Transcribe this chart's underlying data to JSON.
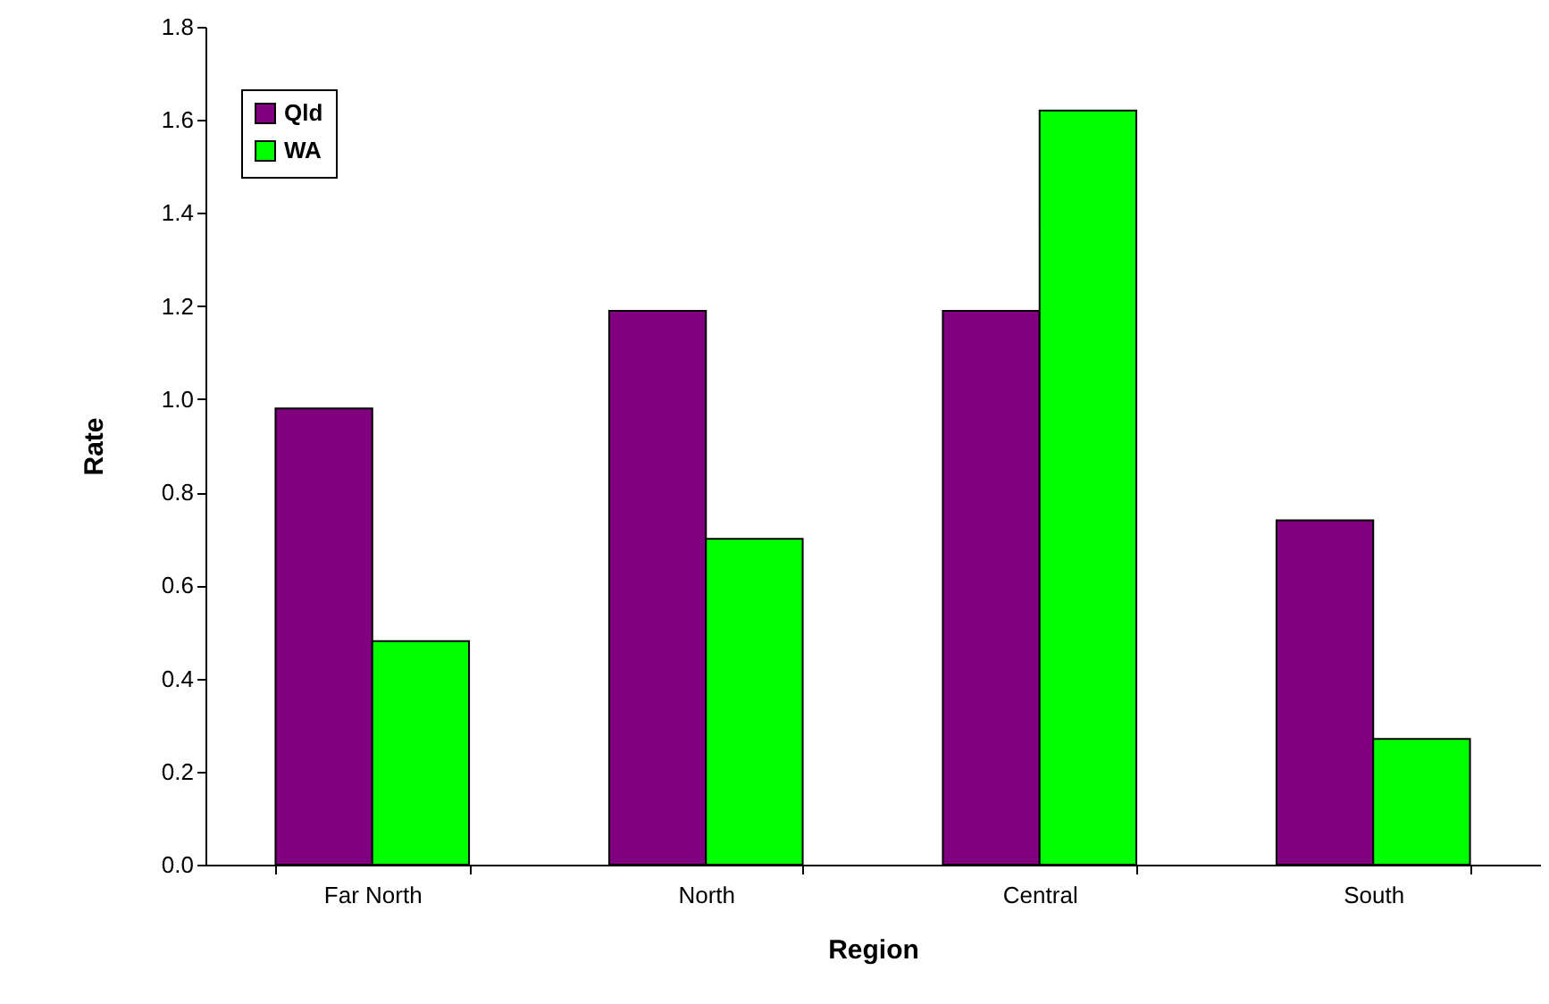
{
  "chart_data": {
    "type": "bar",
    "xlabel": "Region",
    "ylabel": "Rate",
    "categories": [
      "Far North",
      "North",
      "Central",
      "South"
    ],
    "series": [
      {
        "name": "Qld",
        "color": "#800080",
        "values": [
          0.98,
          1.19,
          1.19,
          0.74
        ]
      },
      {
        "name": "WA",
        "color": "#00ff00",
        "values": [
          0.48,
          0.7,
          1.62,
          0.27
        ]
      }
    ],
    "ylim": [
      0,
      1.8
    ],
    "yticks": [
      {
        "value": 0,
        "label": "0.0"
      },
      {
        "value": 0.2,
        "label": "0.2"
      },
      {
        "value": 0.4,
        "label": "0.4"
      },
      {
        "value": 0.6,
        "label": "0.6"
      },
      {
        "value": 0.8,
        "label": "0.8"
      },
      {
        "value": 1,
        "label": "1.0"
      },
      {
        "value": 1.2,
        "label": "1.2"
      },
      {
        "value": 1.4,
        "label": "1.4"
      },
      {
        "value": 1.6,
        "label": "1.6"
      },
      {
        "value": 1.8,
        "label": "1.8"
      }
    ],
    "grid": false,
    "legend": "top left"
  }
}
